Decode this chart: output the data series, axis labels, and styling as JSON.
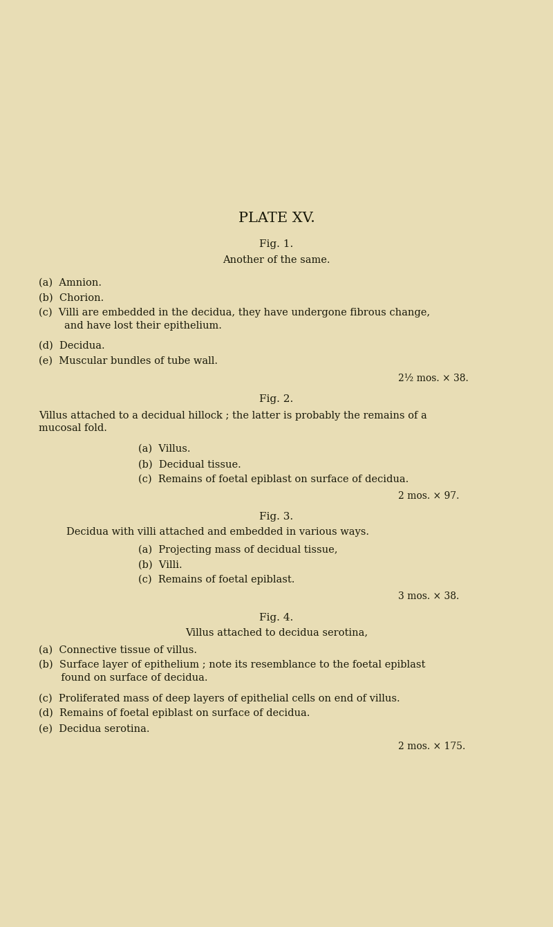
{
  "background_color": "#e8ddb5",
  "text_color": "#1a1a0a",
  "page_width": 8.0,
  "page_height": 13.4,
  "title": "PLATE XV.",
  "fig1_heading": "Fig. 1.",
  "fig1_subtitle": "Another of the same.",
  "fig1_items": [
    "(a)  Amnion.",
    "(b)  Chorion.",
    "(c)  Villi are embedded in the decidua, they have undergone fibrous change,\n        and have lost their epithelium.",
    "(d)  Decidua.",
    "(e)  Muscular bundles of tube wall."
  ],
  "fig1_scale": "2½ mos. × 38.",
  "fig2_heading": "Fig. 2.",
  "fig2_subtitle": "Villus attached to a decidual hillock ; the latter is probably the remains of a\nmucosal fold.",
  "fig2_items": [
    "(a)  Villus.",
    "(b)  Decidual tissue.",
    "(c)  Remains of foetal epiblast on surface of decidua."
  ],
  "fig2_scale": "2 mos. × 97.",
  "fig3_heading": "Fig. 3.",
  "fig3_subtitle": "Decidua with villi attached and embedded in various ways.",
  "fig3_items": [
    "(a)  Projecting mass of decidual tissue,",
    "(b)  Villi.",
    "(c)  Remains of foetal epiblast."
  ],
  "fig3_scale": "3 mos. × 38.",
  "fig4_heading": "Fig. 4.",
  "fig4_subtitle": "Villus attached to decidua serotina,",
  "fig4_items": [
    "(a)  Connective tissue of villus.",
    "(b)  Surface layer of epithelium ; note its resemblance to the foetal epiblast\n       found on surface of decidua.",
    "(c)  Proliferated mass of deep layers of epithelial cells on end of villus.",
    "(d)  Remains of foetal epiblast on surface of decidua.",
    "(e)  Decidua serotina."
  ],
  "fig4_scale": "2 mos. × 175."
}
